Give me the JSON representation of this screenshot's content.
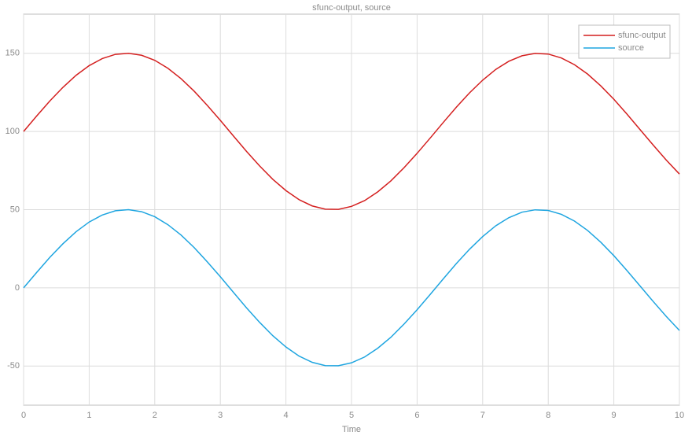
{
  "chart_data": {
    "type": "line",
    "title": "sfunc-output, source",
    "xlabel": "Time",
    "x": [
      0,
      0.2,
      0.4,
      0.6,
      0.8,
      1,
      1.2,
      1.4,
      1.6,
      1.8,
      2,
      2.2,
      2.4,
      2.6,
      2.8,
      3,
      3.2,
      3.4,
      3.6,
      3.8,
      4,
      4.2,
      4.4,
      4.6,
      4.8,
      5,
      5.2,
      5.4,
      5.6,
      5.8,
      6,
      6.2,
      6.4,
      6.6,
      6.8,
      7,
      7.2,
      7.4,
      7.6,
      7.8,
      8,
      8.2,
      8.4,
      8.6,
      8.8,
      9,
      9.2,
      9.4,
      9.6,
      9.8,
      10
    ],
    "series": [
      {
        "name": "sfunc-output",
        "color": "#d41f1f",
        "values": [
          100,
          109.9,
          119.5,
          128.2,
          135.9,
          142.1,
          146.6,
          149.3,
          150,
          148.7,
          145.5,
          140.4,
          133.8,
          125.8,
          116.7,
          107.1,
          97.1,
          87.2,
          77.9,
          69.4,
          62.2,
          56.4,
          52.4,
          50.3,
          50.2,
          52.1,
          55.8,
          61.4,
          68.4,
          76.8,
          86,
          95.8,
          105.8,
          115.6,
          124.7,
          132.8,
          139.7,
          144.9,
          148.4,
          149.9,
          149.5,
          147,
          142.7,
          136.7,
          129.2,
          120.6,
          111.1,
          101.2,
          91.3,
          81.7,
          72.8
        ]
      },
      {
        "name": "source",
        "color": "#1ea5e0",
        "values": [
          0,
          9.9,
          19.5,
          28.2,
          35.9,
          42.1,
          46.6,
          49.3,
          50,
          48.7,
          45.5,
          40.4,
          33.8,
          25.8,
          16.7,
          7.1,
          -2.9,
          -12.8,
          -22.1,
          -30.6,
          -37.8,
          -43.6,
          -47.6,
          -49.7,
          -49.8,
          -47.9,
          -44.2,
          -38.6,
          -31.6,
          -23.2,
          -14,
          -4.2,
          5.8,
          15.6,
          24.7,
          32.8,
          39.7,
          44.9,
          48.4,
          49.9,
          49.5,
          47,
          42.7,
          36.7,
          29.2,
          20.6,
          11.1,
          1.2,
          -8.7,
          -18.3,
          -27.2
        ]
      }
    ],
    "xlim": [
      0,
      10
    ],
    "xticks": [
      0,
      1,
      2,
      3,
      4,
      5,
      6,
      7,
      8,
      9,
      10
    ],
    "ylim": [
      -75,
      175
    ],
    "yticks": [
      -50,
      0,
      50,
      100,
      150
    ],
    "grid": true,
    "legend": "top-right"
  }
}
